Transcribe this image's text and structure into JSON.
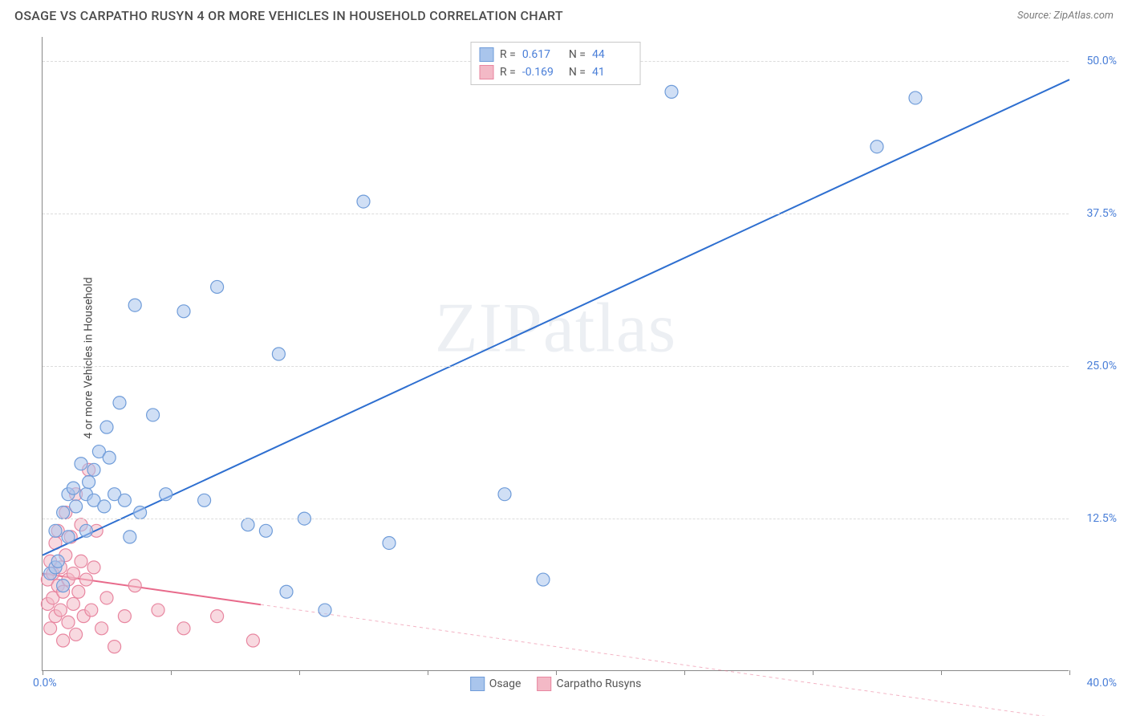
{
  "header": {
    "title": "OSAGE VS CARPATHO RUSYN 4 OR MORE VEHICLES IN HOUSEHOLD CORRELATION CHART",
    "source": "Source: ZipAtlas.com"
  },
  "chart": {
    "type": "scatter",
    "ylabel": "4 or more Vehicles in Household",
    "watermark": "ZIPatlas",
    "background_color": "#ffffff",
    "grid_color": "#dcdcdc",
    "axis_color": "#888888",
    "label_color": "#4a7fd8",
    "xlim": [
      0,
      40
    ],
    "ylim": [
      0,
      52
    ],
    "xtick_positions": [
      0,
      5,
      10,
      15,
      20,
      25,
      30,
      35,
      40
    ],
    "xtick_labels": {
      "min": "0.0%",
      "max": "40.0%"
    },
    "ytick_positions": [
      12.5,
      25.0,
      37.5,
      50.0
    ],
    "ytick_labels": [
      "12.5%",
      "25.0%",
      "37.5%",
      "50.0%"
    ],
    "marker_radius": 8,
    "marker_stroke_width": 1.2,
    "line_width": 2,
    "label_fontsize": 14,
    "title_fontsize": 16
  },
  "series": {
    "osage": {
      "label": "Osage",
      "fill_color": "#a9c5ec",
      "stroke_color": "#6f9cd9",
      "line_color": "#2e6fd0",
      "R": "0.617",
      "N": "44",
      "trend": {
        "x1": 0,
        "y1": 9.5,
        "x2": 40,
        "y2": 48.5,
        "solid_until_x": 40
      },
      "points": [
        [
          0.3,
          8.0
        ],
        [
          0.5,
          8.5
        ],
        [
          0.5,
          11.5
        ],
        [
          0.6,
          9.0
        ],
        [
          0.8,
          7.0
        ],
        [
          0.8,
          13.0
        ],
        [
          1.0,
          14.5
        ],
        [
          1.0,
          11.0
        ],
        [
          1.2,
          15.0
        ],
        [
          1.3,
          13.5
        ],
        [
          1.5,
          17.0
        ],
        [
          1.7,
          14.5
        ],
        [
          1.7,
          11.5
        ],
        [
          1.8,
          15.5
        ],
        [
          2.0,
          14.0
        ],
        [
          2.0,
          16.5
        ],
        [
          2.2,
          18.0
        ],
        [
          2.4,
          13.5
        ],
        [
          2.5,
          20.0
        ],
        [
          2.6,
          17.5
        ],
        [
          2.8,
          14.5
        ],
        [
          3.0,
          22.0
        ],
        [
          3.2,
          14.0
        ],
        [
          3.4,
          11.0
        ],
        [
          3.6,
          30.0
        ],
        [
          3.8,
          13.0
        ],
        [
          4.3,
          21.0
        ],
        [
          4.8,
          14.5
        ],
        [
          5.5,
          29.5
        ],
        [
          6.3,
          14.0
        ],
        [
          6.8,
          31.5
        ],
        [
          8.0,
          12.0
        ],
        [
          8.7,
          11.5
        ],
        [
          9.2,
          26.0
        ],
        [
          9.5,
          6.5
        ],
        [
          10.2,
          12.5
        ],
        [
          11.0,
          5.0
        ],
        [
          12.5,
          38.5
        ],
        [
          13.5,
          10.5
        ],
        [
          18.0,
          14.5
        ],
        [
          19.5,
          7.5
        ],
        [
          24.5,
          47.5
        ],
        [
          32.5,
          43.0
        ],
        [
          34.0,
          47.0
        ]
      ]
    },
    "carpatho": {
      "label": "Carpatho Rusyns",
      "fill_color": "#f3b9c6",
      "stroke_color": "#e886a0",
      "line_color": "#e86a8b",
      "R": "-0.169",
      "N": "41",
      "trend": {
        "x1": 0,
        "y1": 8.0,
        "x2": 40,
        "y2": -4.0,
        "solid_until_x": 8.5
      },
      "points": [
        [
          0.2,
          5.5
        ],
        [
          0.2,
          7.5
        ],
        [
          0.3,
          3.5
        ],
        [
          0.3,
          9.0
        ],
        [
          0.4,
          6.0
        ],
        [
          0.4,
          8.0
        ],
        [
          0.5,
          10.5
        ],
        [
          0.5,
          4.5
        ],
        [
          0.6,
          7.0
        ],
        [
          0.6,
          11.5
        ],
        [
          0.7,
          5.0
        ],
        [
          0.7,
          8.5
        ],
        [
          0.8,
          2.5
        ],
        [
          0.8,
          6.5
        ],
        [
          0.9,
          13.0
        ],
        [
          0.9,
          9.5
        ],
        [
          1.0,
          4.0
        ],
        [
          1.0,
          7.5
        ],
        [
          1.1,
          11.0
        ],
        [
          1.2,
          5.5
        ],
        [
          1.2,
          8.0
        ],
        [
          1.3,
          14.5
        ],
        [
          1.3,
          3.0
        ],
        [
          1.4,
          6.5
        ],
        [
          1.5,
          9.0
        ],
        [
          1.5,
          12.0
        ],
        [
          1.6,
          4.5
        ],
        [
          1.7,
          7.5
        ],
        [
          1.8,
          16.5
        ],
        [
          1.9,
          5.0
        ],
        [
          2.0,
          8.5
        ],
        [
          2.1,
          11.5
        ],
        [
          2.3,
          3.5
        ],
        [
          2.5,
          6.0
        ],
        [
          2.8,
          2.0
        ],
        [
          3.2,
          4.5
        ],
        [
          3.6,
          7.0
        ],
        [
          4.5,
          5.0
        ],
        [
          5.5,
          3.5
        ],
        [
          6.8,
          4.5
        ],
        [
          8.2,
          2.5
        ]
      ]
    }
  },
  "legend_top": {
    "r_label": "R =",
    "n_label": "N ="
  },
  "legend_bottom": {
    "items": [
      {
        "key": "osage"
      },
      {
        "key": "carpatho"
      }
    ]
  }
}
